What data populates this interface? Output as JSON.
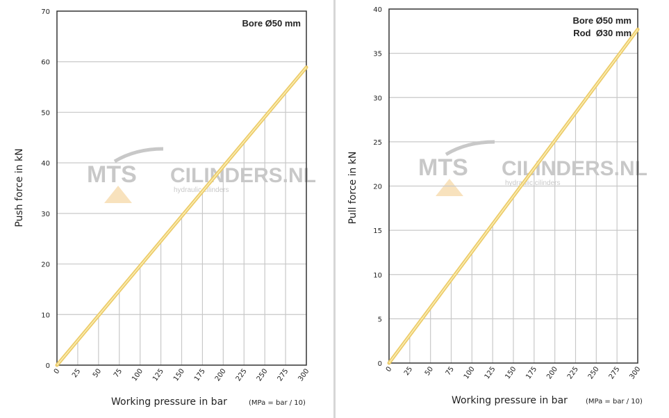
{
  "colors": {
    "line": "#eccb6a",
    "line_highlight": "#fbefb3",
    "grid": "#c8c8c8",
    "frame": "#333333",
    "watermark_dark": "#b6b6b6",
    "watermark_orange": "#f6d9a8"
  },
  "watermark": {
    "brand_left": "MTS",
    "brand_right": "CILINDERS.NL",
    "tagline": "hydraulic cilinders"
  },
  "chart_data": [
    {
      "type": "line",
      "title": "",
      "annotation": "Bore Ø50 mm",
      "xlabel": "Working pressure in bar",
      "xlabel_note": "(MPa = bar / 10)",
      "ylabel": "Push force in kN",
      "xlim": [
        0,
        300
      ],
      "ylim": [
        0,
        70
      ],
      "x_ticks": [
        0,
        25,
        50,
        75,
        100,
        125,
        150,
        175,
        200,
        225,
        250,
        275,
        300
      ],
      "y_ticks": [
        0,
        10,
        20,
        30,
        40,
        50,
        60,
        70
      ],
      "grid": true,
      "series": [
        {
          "x": [
            0,
            300
          ],
          "y": [
            0,
            58.9
          ]
        }
      ]
    },
    {
      "type": "line",
      "title": "",
      "annotation": "Bore Ø50 mm",
      "annotation2": "Rod  Ø30 mm",
      "xlabel": "Working pressure in bar",
      "xlabel_note": "(MPa = bar / 10)",
      "ylabel": "Pull force in kN",
      "xlim": [
        0,
        300
      ],
      "ylim": [
        0,
        40
      ],
      "x_ticks": [
        0,
        25,
        50,
        75,
        100,
        125,
        150,
        175,
        200,
        225,
        250,
        275,
        300
      ],
      "y_ticks": [
        0,
        5,
        10,
        15,
        20,
        25,
        30,
        35,
        40
      ],
      "grid": true,
      "series": [
        {
          "x": [
            0,
            300
          ],
          "y": [
            0,
            37.7
          ]
        }
      ]
    }
  ]
}
